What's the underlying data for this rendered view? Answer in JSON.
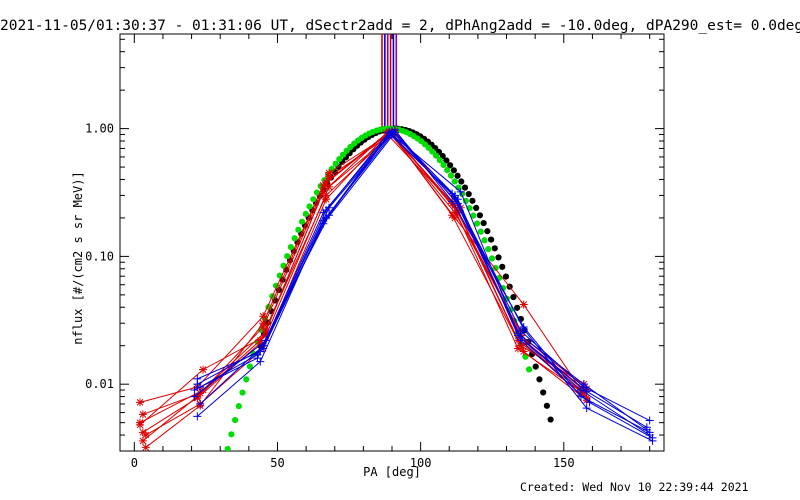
{
  "title": "2021-11-05/01:30:37 - 01:31:06 UT, dSectr2add = 2, dPhAng2add = -10.0deg, dPA290_est=  0.0deg",
  "footer": "Created: Wed Nov 10 22:39:44 2021",
  "chart_data": {
    "type": "line",
    "xlabel": "PA [deg]",
    "ylabel": "nflux [#/(cm2 s sr MeV)]",
    "xlim": [
      -5,
      185
    ],
    "ylim": [
      0.003,
      5.5
    ],
    "y_scale": "log",
    "x_ticks": [
      0,
      50,
      100,
      150
    ],
    "x_tick_labels": [
      "0",
      "50",
      "100",
      "150"
    ],
    "y_ticks": [
      0.01,
      0.1,
      1.0
    ],
    "y_tick_labels": [
      "0.01",
      "0.10",
      "1.00"
    ],
    "colors": {
      "red": "#dd0000",
      "blue": "#0000dd",
      "green": "#00dd00",
      "black": "#000000",
      "purple": "#8800aa"
    },
    "vertical_lines_x": [
      86.5,
      87.5,
      88.5,
      89.5,
      90.5,
      91.5
    ],
    "vertical_lines_y_top": 5.5,
    "vertical_lines_y_bottom": 0.93,
    "red_series": [
      {
        "name": "",
        "x": [
          2,
          22,
          45,
          68,
          90,
          113,
          135,
          158
        ],
        "y": [
          0.0072,
          0.0095,
          0.034,
          0.45,
          0.93,
          0.22,
          0.024,
          0.0092
        ]
      },
      {
        "name": "",
        "x": [
          3,
          23,
          45,
          67,
          89,
          112,
          134,
          157
        ],
        "y": [
          0.0058,
          0.0085,
          0.028,
          0.38,
          0.95,
          0.25,
          0.022,
          0.0085
        ]
      },
      {
        "name": "",
        "x": [
          2,
          24,
          46,
          68,
          90,
          112,
          136,
          158
        ],
        "y": [
          0.0048,
          0.013,
          0.024,
          0.35,
          0.9,
          0.2,
          0.042,
          0.0078
        ]
      },
      {
        "name": "",
        "x": [
          3,
          22,
          44,
          66,
          88,
          111,
          134,
          156
        ],
        "y": [
          0.0042,
          0.0078,
          0.021,
          0.32,
          0.92,
          0.26,
          0.019,
          0.0088
        ]
      },
      {
        "name": "",
        "x": [
          4,
          23,
          45,
          67,
          89,
          113,
          135,
          157
        ],
        "y": [
          0.004,
          0.007,
          0.019,
          0.28,
          0.94,
          0.23,
          0.02,
          0.01
        ]
      },
      {
        "name": "",
        "x": [
          2,
          24,
          46,
          68,
          90,
          111,
          136,
          158
        ],
        "y": [
          0.005,
          0.009,
          0.026,
          0.42,
          0.91,
          0.21,
          0.018,
          0.0075
        ]
      },
      {
        "name": "",
        "x": [
          3,
          22,
          44,
          67,
          91,
          114,
          135,
          156
        ],
        "y": [
          0.0036,
          0.008,
          0.022,
          0.3,
          0.96,
          0.24,
          0.023,
          0.0082
        ]
      },
      {
        "name": "",
        "x": [
          4,
          23,
          45,
          66,
          89,
          112,
          137,
          157
        ],
        "y": [
          0.0032,
          0.0068,
          0.03,
          0.36,
          0.93,
          0.22,
          0.021,
          0.009
        ]
      }
    ],
    "blue_series": [
      {
        "name": "",
        "x": [
          22,
          44,
          66,
          90,
          112,
          135,
          157,
          180
        ],
        "y": [
          0.011,
          0.018,
          0.22,
          0.95,
          0.3,
          0.026,
          0.0095,
          0.0052
        ]
      },
      {
        "name": "",
        "x": [
          21,
          43,
          67,
          89,
          113,
          134,
          158,
          179
        ],
        "y": [
          0.009,
          0.016,
          0.2,
          0.92,
          0.28,
          0.024,
          0.0088,
          0.0046
        ]
      },
      {
        "name": "",
        "x": [
          23,
          45,
          68,
          91,
          111,
          136,
          156,
          180
        ],
        "y": [
          0.007,
          0.02,
          0.24,
          0.98,
          0.27,
          0.028,
          0.008,
          0.0042
        ]
      },
      {
        "name": "",
        "x": [
          22,
          44,
          66,
          90,
          114,
          135,
          159,
          181
        ],
        "y": [
          0.0056,
          0.015,
          0.19,
          0.9,
          0.32,
          0.022,
          0.0072,
          0.0038
        ]
      },
      {
        "name": "",
        "x": [
          21,
          46,
          67,
          89,
          112,
          134,
          157,
          179
        ],
        "y": [
          0.008,
          0.022,
          0.23,
          0.94,
          0.29,
          0.025,
          0.01,
          0.0044
        ]
      },
      {
        "name": "",
        "x": [
          23,
          43,
          68,
          90,
          113,
          136,
          158,
          181
        ],
        "y": [
          0.0095,
          0.017,
          0.21,
          0.96,
          0.26,
          0.027,
          0.0065,
          0.0036
        ]
      },
      {
        "name": "",
        "x": [
          22,
          45,
          66,
          91,
          111,
          135,
          156,
          180
        ],
        "y": [
          0.01,
          0.019,
          0.18,
          0.93,
          0.31,
          0.023,
          0.009,
          0.004
        ]
      }
    ],
    "green_curve": {
      "center": 89,
      "sigma": 16.6,
      "peak": 1.0,
      "x_start": 30,
      "x_end": 138,
      "step": 1.3
    },
    "black_curve": {
      "center": 91,
      "sigma": 16.8,
      "peak": 1.0,
      "x_start": 44,
      "x_end": 146,
      "step": 1.3
    }
  }
}
